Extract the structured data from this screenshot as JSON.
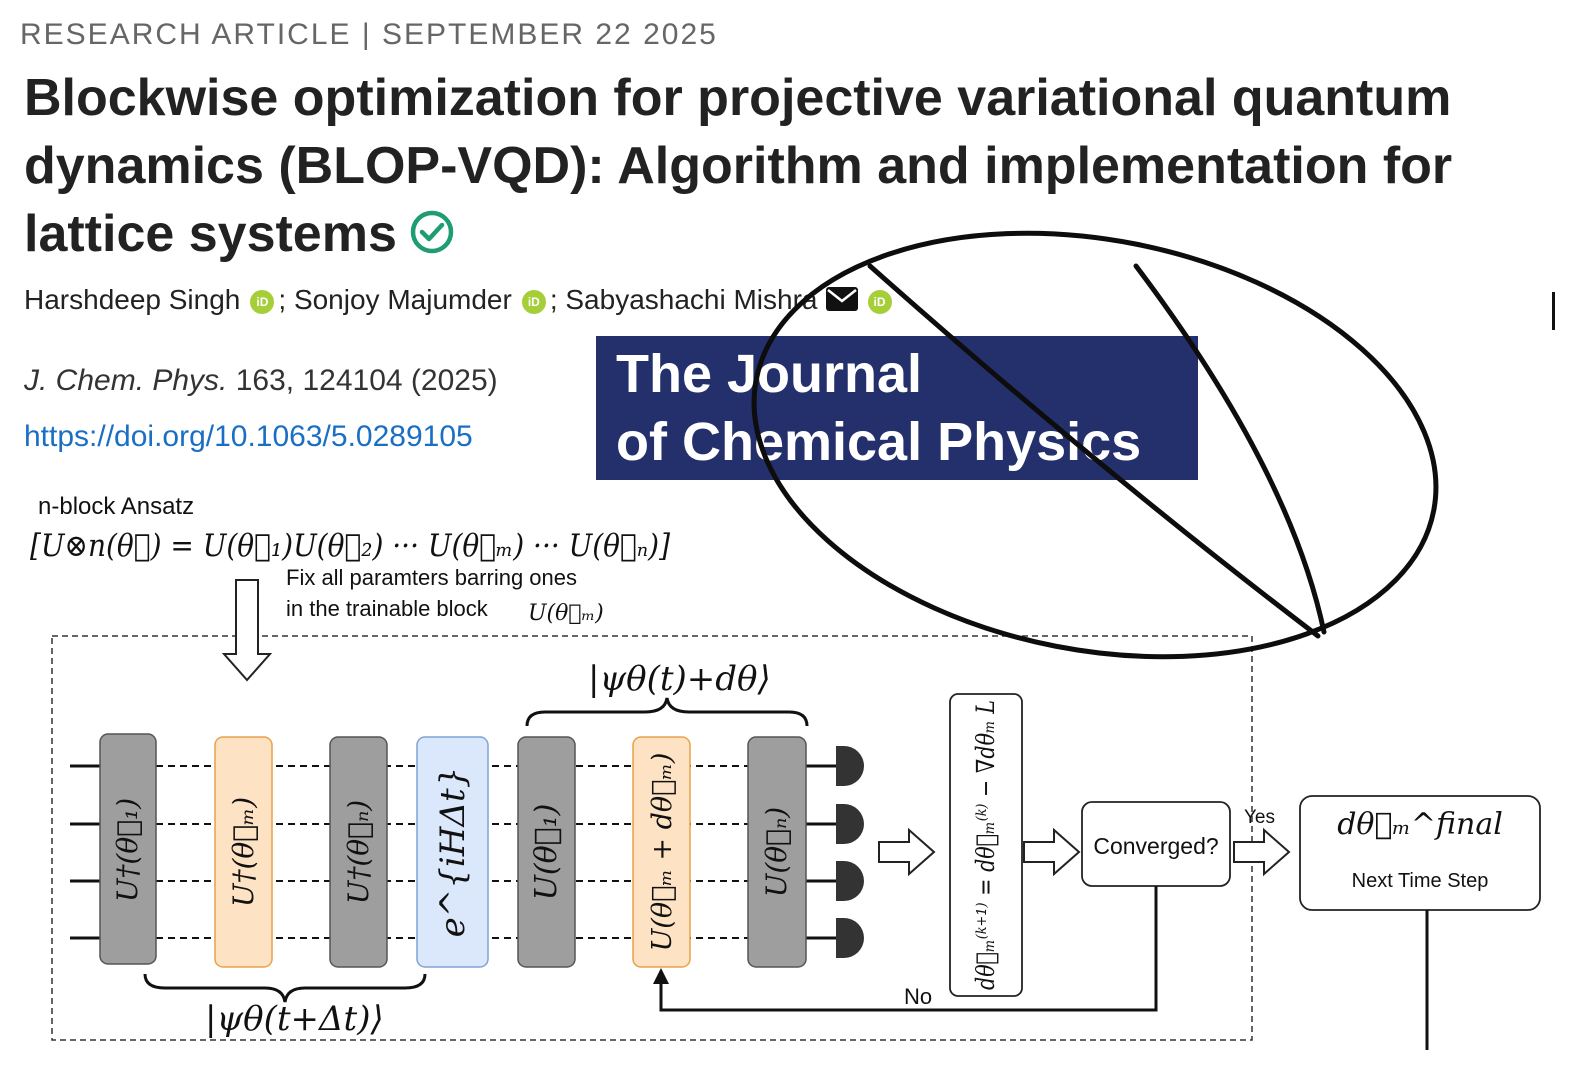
{
  "header": {
    "kicker": "RESEARCH ARTICLE |  SEPTEMBER 22 2025",
    "title": "Blockwise optimization for projective variational quantum dynamics (BLOP-VQD): Algorithm and implementation for lattice systems"
  },
  "authors": [
    {
      "name": "Harshdeep Singh",
      "sep": ";"
    },
    {
      "name": "Sonjoy Majumder",
      "sep": ";"
    },
    {
      "name": "Sabyashachi Mishra",
      "sep": ""
    }
  ],
  "citation": {
    "journal_abbrev": "J. Chem. Phys.",
    "volume_page_year": " 163, 124104 (2025)",
    "doi": "https://doi.org/10.1063/5.0289105"
  },
  "journal_logo": {
    "line1": "The Journal",
    "line2": "of Chemical Physics"
  },
  "figure": {
    "ansatz_title": "n-block Ansatz",
    "ansatz_formula": "[U⊗n(θ⃗) = U(θ⃗₁)U(θ⃗₂) ··· U(θ⃗ₘ) ··· U(θ⃗ₙ)]",
    "fix_note_line1": "Fix all paramters barring ones",
    "fix_note_line2": "in the trainable block",
    "fix_note_symbol": "U(θ⃗ₘ)",
    "ket_top": "|ψθ(t)+dθ⟩",
    "ket_bottom": "|ψθ(t+Δt)⟩",
    "gates": [
      "U†(θ⃗₁)",
      "U†(θ⃗ₘ)",
      "U†(θ⃗ₙ)",
      "e^{iHΔt}",
      "U(θ⃗₁)",
      "U(θ⃗ₘ + dθ⃗ₘ)",
      "U(θ⃗ₙ)"
    ],
    "update_rule": "dθ⃗ₘ⁽ᵏ⁺¹⁾ = dθ⃗ₘ⁽ᵏ⁾ − ∇dθₘ L",
    "converged_label": "Converged?",
    "yes_label": "Yes",
    "no_label": "No",
    "final_symbol": "dθ⃗ₘ^final",
    "next_step_label": "Next Time Step"
  },
  "colors": {
    "gray_gate": "#9e9e9e",
    "orange_gate": "#fde3c4",
    "blue_gate": "#dbe8fb",
    "logo_bg": "#24306b",
    "verified": "#1f9d72",
    "orcid": "#a6ce39",
    "link": "#1a6fc4"
  }
}
